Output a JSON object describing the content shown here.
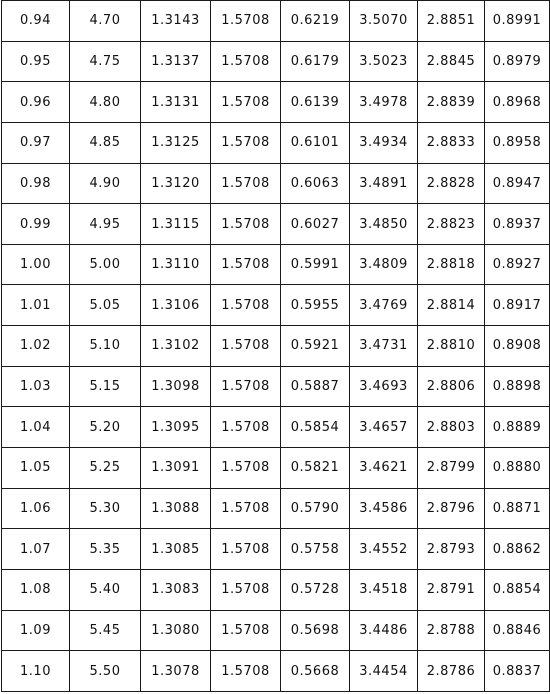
{
  "table": {
    "rows": [
      [
        "0.94",
        "4.70",
        "1.3143",
        "1.5708",
        "0.6219",
        "3.5070",
        "2.8851",
        "0.8991"
      ],
      [
        "0.95",
        "4.75",
        "1.3137",
        "1.5708",
        "0.6179",
        "3.5023",
        "2.8845",
        "0.8979"
      ],
      [
        "0.96",
        "4.80",
        "1.3131",
        "1.5708",
        "0.6139",
        "3.4978",
        "2.8839",
        "0.8968"
      ],
      [
        "0.97",
        "4.85",
        "1.3125",
        "1.5708",
        "0.6101",
        "3.4934",
        "2.8833",
        "0.8958"
      ],
      [
        "0.98",
        "4.90",
        "1.3120",
        "1.5708",
        "0.6063",
        "3.4891",
        "2.8828",
        "0.8947"
      ],
      [
        "0.99",
        "4.95",
        "1.3115",
        "1.5708",
        "0.6027",
        "3.4850",
        "2.8823",
        "0.8937"
      ],
      [
        "1.00",
        "5.00",
        "1.3110",
        "1.5708",
        "0.5991",
        "3.4809",
        "2.8818",
        "0.8927"
      ],
      [
        "1.01",
        "5.05",
        "1.3106",
        "1.5708",
        "0.5955",
        "3.4769",
        "2.8814",
        "0.8917"
      ],
      [
        "1.02",
        "5.10",
        "1.3102",
        "1.5708",
        "0.5921",
        "3.4731",
        "2.8810",
        "0.8908"
      ],
      [
        "1.03",
        "5.15",
        "1.3098",
        "1.5708",
        "0.5887",
        "3.4693",
        "2.8806",
        "0.8898"
      ],
      [
        "1.04",
        "5.20",
        "1.3095",
        "1.5708",
        "0.5854",
        "3.4657",
        "2.8803",
        "0.8889"
      ],
      [
        "1.05",
        "5.25",
        "1.3091",
        "1.5708",
        "0.5821",
        "3.4621",
        "2.8799",
        "0.8880"
      ],
      [
        "1.06",
        "5.30",
        "1.3088",
        "1.5708",
        "0.5790",
        "3.4586",
        "2.8796",
        "0.8871"
      ],
      [
        "1.07",
        "5.35",
        "1.3085",
        "1.5708",
        "0.5758",
        "3.4552",
        "2.8793",
        "0.8862"
      ],
      [
        "1.08",
        "5.40",
        "1.3083",
        "1.5708",
        "0.5728",
        "3.4518",
        "2.8791",
        "0.8854"
      ],
      [
        "1.09",
        "5.45",
        "1.3080",
        "1.5708",
        "0.5698",
        "3.4486",
        "2.8788",
        "0.8846"
      ],
      [
        "1.10",
        "5.50",
        "1.3078",
        "1.5708",
        "0.5668",
        "3.4454",
        "2.8786",
        "0.8837"
      ]
    ]
  }
}
